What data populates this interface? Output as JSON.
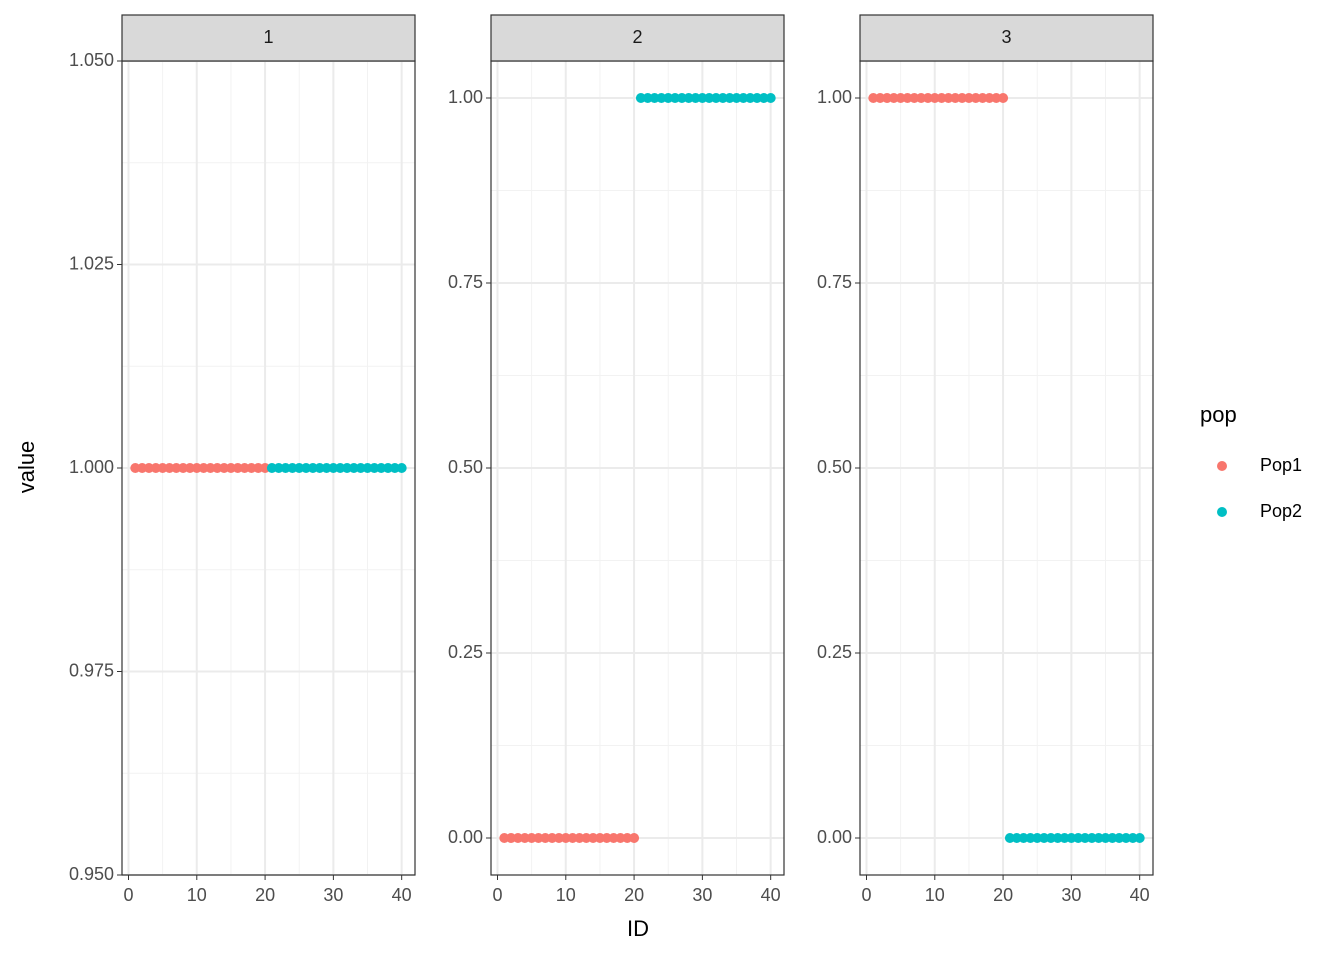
{
  "chart_data": {
    "type": "scatter",
    "x_label": "ID",
    "y_label": "value",
    "legend_title": "pop",
    "grid": true,
    "series": [
      {
        "name": "Pop1",
        "color": "#F8766D",
        "x": [
          1,
          2,
          3,
          4,
          5,
          6,
          7,
          8,
          9,
          10,
          11,
          12,
          13,
          14,
          15,
          16,
          17,
          18,
          19,
          20
        ]
      },
      {
        "name": "Pop2",
        "color": "#00BFC4",
        "x": [
          21,
          22,
          23,
          24,
          25,
          26,
          27,
          28,
          29,
          30,
          31,
          32,
          33,
          34,
          35,
          36,
          37,
          38,
          39,
          40
        ]
      }
    ],
    "xlim": [
      -0.95,
      41.95
    ],
    "xticks": [
      0,
      10,
      20,
      30,
      40
    ],
    "facets": [
      {
        "title": "1",
        "ylim": [
          0.95,
          1.05
        ],
        "yticks": [
          {
            "value": 0.95,
            "label": "0.950"
          },
          {
            "value": 0.975,
            "label": "0.975"
          },
          {
            "value": 1,
            "label": "1.000"
          },
          {
            "value": 1.025,
            "label": "1.025"
          },
          {
            "value": 1.05,
            "label": "1.050"
          }
        ],
        "series": [
          {
            "values": [
              1,
              1,
              1,
              1,
              1,
              1,
              1,
              1,
              1,
              1,
              1,
              1,
              1,
              1,
              1,
              1,
              1,
              1,
              1,
              1
            ]
          },
          {
            "values": [
              1,
              1,
              1,
              1,
              1,
              1,
              1,
              1,
              1,
              1,
              1,
              1,
              1,
              1,
              1,
              1,
              1,
              1,
              1,
              1
            ]
          }
        ]
      },
      {
        "title": "2",
        "ylim": [
          -0.05,
          1.05
        ],
        "yticks": [
          {
            "value": 0,
            "label": "0.00"
          },
          {
            "value": 0.25,
            "label": "0.25"
          },
          {
            "value": 0.5,
            "label": "0.50"
          },
          {
            "value": 0.75,
            "label": "0.75"
          },
          {
            "value": 1,
            "label": "1.00"
          }
        ],
        "series": [
          {
            "values": [
              0,
              0,
              0,
              0,
              0,
              0,
              0,
              0,
              0,
              0,
              0,
              0,
              0,
              0,
              0,
              0,
              0,
              0,
              0,
              0
            ]
          },
          {
            "values": [
              1,
              1,
              1,
              1,
              1,
              1,
              1,
              1,
              1,
              1,
              1,
              1,
              1,
              1,
              1,
              1,
              1,
              1,
              1,
              1
            ]
          }
        ]
      },
      {
        "title": "3",
        "ylim": [
          -0.05,
          1.05
        ],
        "yticks": [
          {
            "value": 0,
            "label": "0.00"
          },
          {
            "value": 0.25,
            "label": "0.25"
          },
          {
            "value": 0.5,
            "label": "0.50"
          },
          {
            "value": 0.75,
            "label": "0.75"
          },
          {
            "value": 1,
            "label": "1.00"
          }
        ],
        "series": [
          {
            "values": [
              1,
              1,
              1,
              1,
              1,
              1,
              1,
              1,
              1,
              1,
              1,
              1,
              1,
              1,
              1,
              1,
              1,
              1,
              1,
              1
            ]
          },
          {
            "values": [
              0,
              0,
              0,
              0,
              0,
              0,
              0,
              0,
              0,
              0,
              0,
              0,
              0,
              0,
              0,
              0,
              0,
              0,
              0,
              0
            ]
          }
        ]
      }
    ]
  }
}
